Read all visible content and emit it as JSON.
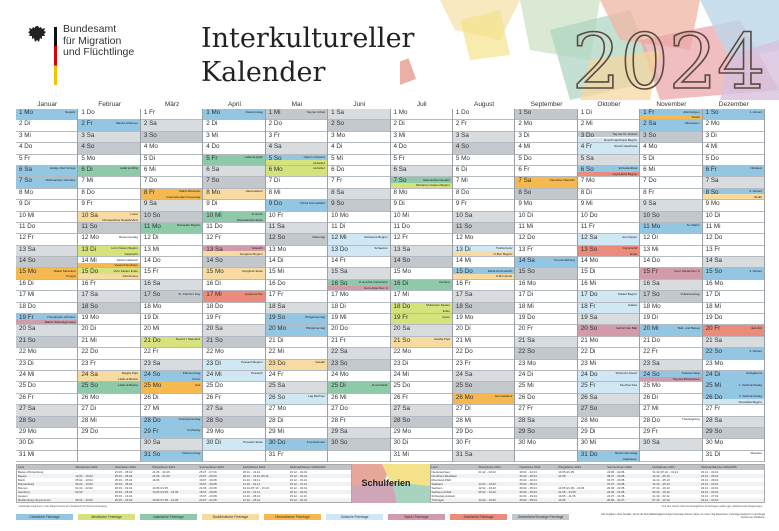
{
  "header": {
    "logo_lines": [
      "Bundesamt",
      "für Migration",
      "und Flüchtlinge"
    ],
    "title_line1": "Interkultureller",
    "title_line2": "Kalender",
    "year": "2024"
  },
  "weekdays": [
    "Mo",
    "Di",
    "Mi",
    "Do",
    "Fr",
    "Sa",
    "So"
  ],
  "colors": {
    "sat": "#d8dcdf",
    "sun": "#c3c8cc",
    "c": "#93c6e2",
    "j": "#cfe8f3",
    "i": "#8ec9a9",
    "a": "#d6e27c",
    "b": "#f8dba0",
    "h": "#f5b94f",
    "bh": "#d19ba9",
    "y": "#ea8b7c",
    "g": "#c3c8cc"
  },
  "months": [
    {
      "name": "Januar",
      "days": 31,
      "start": 0,
      "events": {
        "1": [
          [
            "c",
            "Neujahr"
          ]
        ],
        "6": [
          [
            "c",
            "Heilige Drei Könige"
          ]
        ],
        "7": [
          [
            "c",
            "Weihnachten orthodox"
          ]
        ],
        "15": [
          [
            "h",
            "Makar Sankranti"
          ],
          [
            "h",
            "Pongal"
          ]
        ],
        "19": [
          [
            "c",
            "Theophanie orthodox"
          ],
          [
            "bh",
            "Bahá'í Weltreligionstag"
          ]
        ]
      }
    },
    {
      "name": "Februar",
      "days": 29,
      "start": 3,
      "events": {
        "2": [
          [
            "c",
            "Mariä Lichtmess"
          ]
        ],
        "6": [
          [
            "i",
            "Lailat al-Miraj"
          ]
        ],
        "10": [
          [
            "b",
            "Losar"
          ],
          [
            "b",
            "Chinesisches Neujahrsfest"
          ]
        ],
        "12": [
          [
            "w",
            "Rosenmontag"
          ]
        ],
        "13": [
          [
            "a",
            "Hızır Fasten Beginn"
          ],
          [
            "w",
            "Fastnacht"
          ]
        ],
        "14": [
          [
            "w",
            "Aschermittwoch"
          ],
          [
            "h",
            "Vasant Panchami"
          ]
        ],
        "15": [
          [
            "a",
            "Hızır Fasten Ende"
          ],
          [
            "b",
            "Parinirvana"
          ]
        ],
        "24": [
          [
            "b",
            "Magha Puja"
          ],
          [
            "b",
            "Lailat al-Bara'a"
          ]
        ],
        "25": [
          [
            "i",
            "Lailat al-Bara'a"
          ]
        ]
      }
    },
    {
      "name": "März",
      "days": 31,
      "start": 4,
      "events": {
        "8": [
          [
            "h",
            "Maha Shivaratri"
          ],
          [
            "w",
            "Internationaler Frauentag"
          ]
        ],
        "11": [
          [
            "i",
            "Ramadan Beginn"
          ]
        ],
        "17": [
          [
            "g",
            "St. Patrick's Day"
          ]
        ],
        "21": [
          [
            "a",
            "Nevruz / Naw-Ruz"
          ]
        ],
        "24": [
          [
            "c",
            "Palmsonntag"
          ],
          [
            "c",
            "Purim"
          ]
        ],
        "25": [
          [
            "h",
            "Holi"
          ]
        ],
        "28": [
          [
            "c",
            "Gründonnerstag"
          ]
        ],
        "29": [
          [
            "c",
            "Karfreitag"
          ]
        ],
        "31": [
          [
            "c",
            "Ostersonntag"
          ]
        ]
      }
    },
    {
      "name": "April",
      "days": 30,
      "start": 0,
      "events": {
        "1": [
          [
            "c",
            "Ostermontag"
          ]
        ],
        "5": [
          [
            "i",
            "Lailat al-Qadr"
          ]
        ],
        "8": [
          [
            "b",
            "Hanamatsuri"
          ]
        ],
        "10": [
          [
            "i",
            "Id al-Fitr"
          ],
          [
            "i",
            "Ramadanfest Ende"
          ]
        ],
        "13": [
          [
            "bh",
            "Vaisakhi"
          ],
          [
            "b",
            "Songkran Beginn"
          ]
        ],
        "15": [
          [
            "b",
            "Songkran Ende"
          ]
        ],
        "17": [
          [
            "y",
            "Çarşema Sor"
          ]
        ],
        "23": [
          [
            "j",
            "Pessach Beginn"
          ]
        ],
        "24": [
          [
            "j",
            "Pessach"
          ]
        ],
        "30": [
          [
            "j",
            "Pessach Ende"
          ]
        ]
      }
    },
    {
      "name": "Mai",
      "days": 31,
      "start": 2,
      "events": {
        "1": [
          [
            "g",
            "Tag der Arbeit"
          ]
        ],
        "5": [
          [
            "c",
            "Ostern orthodox"
          ],
          [
            "a",
            "Hıdrellez"
          ]
        ],
        "6": [
          [
            "a",
            "Hıdrellez"
          ]
        ],
        "9": [
          [
            "c",
            "Christi Himmelfahrt"
          ]
        ],
        "12": [
          [
            "g",
            "Muttertag"
          ]
        ],
        "19": [
          [
            "c",
            "Pfingstsonntag"
          ]
        ],
        "20": [
          [
            "c",
            "Pfingstmontag"
          ]
        ],
        "23": [
          [
            "b",
            "Vesakh"
          ]
        ],
        "26": [
          [
            "j",
            "Lag BaOmer"
          ]
        ],
        "30": [
          [
            "c",
            "Fronleichnam"
          ]
        ]
      }
    },
    {
      "name": "Juni",
      "days": 30,
      "start": 5,
      "events": {
        "12": [
          [
            "j",
            "Schawuot Beginn"
          ]
        ],
        "13": [
          [
            "j",
            "Schawuot"
          ]
        ],
        "16": [
          [
            "i",
            "Id al-Adha (Opferfest)"
          ],
          [
            "bh",
            "Guru Arjan Dev Ji"
          ]
        ],
        "25": [
          [
            "i",
            "Id al-Ghadir"
          ]
        ]
      }
    },
    {
      "name": "Juli",
      "days": 31,
      "start": 0,
      "events": {
        "7": [
          [
            "i",
            "Islamisches Neujahr"
          ],
          [
            "a",
            "Muharrem Fasten Beginn"
          ]
        ],
        "16": [
          [
            "i",
            "Aschura"
          ]
        ],
        "18": [
          [
            "a",
            "Muharrem Fasten"
          ],
          [
            "a",
            "Ende"
          ]
        ],
        "19": [
          [
            "a",
            "Aşure"
          ]
        ],
        "21": [
          [
            "b",
            "Asalha Puja"
          ]
        ]
      }
    },
    {
      "name": "August",
      "days": 31,
      "start": 3,
      "events": {
        "13": [
          [
            "j",
            "Tischa beAv"
          ],
          [
            "b",
            "O-Bon Beginn"
          ]
        ],
        "15": [
          [
            "c",
            "Mariä Himmelfahrt"
          ],
          [
            "b",
            "O-Bon Ende"
          ]
        ],
        "26": [
          [
            "h",
            "Janmashtami"
          ]
        ]
      }
    },
    {
      "name": "September",
      "days": 30,
      "start": 6,
      "events": {
        "7": [
          [
            "h",
            "Ganesha Chaturthi"
          ]
        ],
        "14": [
          [
            "c",
            "Kreuzerhöhung"
          ]
        ]
      }
    },
    {
      "name": "Oktober",
      "days": 31,
      "start": 1,
      "events": {
        "3": [
          [
            "g",
            "Tag der Dt. Einheit"
          ],
          [
            "j",
            "Rosch Haschana Beginn"
          ]
        ],
        "4": [
          [
            "j",
            "Rosch Haschana"
          ]
        ],
        "6": [
          [
            "c",
            "Erntedankfest"
          ],
          [
            "y",
            "Cejna Ezid Beginn"
          ]
        ],
        "12": [
          [
            "j",
            "Jom Kippur"
          ]
        ],
        "13": [
          [
            "y",
            "Cejna Ezid"
          ],
          [
            "y",
            "Ende"
          ]
        ],
        "17": [
          [
            "j",
            "Sukkot Beginn"
          ]
        ],
        "18": [
          [
            "j",
            "Sukkot"
          ]
        ],
        "20": [
          [
            "bh",
            "Geburt des Báb"
          ]
        ],
        "24": [
          [
            "j",
            "Schemini Azeret"
          ]
        ],
        "25": [
          [
            "j",
            "Simchat Tora"
          ]
        ],
        "31": [
          [
            "c",
            "Reformationstag"
          ],
          [
            "w",
            "Halloween"
          ]
        ]
      }
    },
    {
      "name": "November",
      "days": 30,
      "start": 4,
      "events": {
        "1": [
          [
            "c",
            "Allerheiligen"
          ],
          [
            "h",
            "Diwali"
          ]
        ],
        "2": [
          [
            "c",
            "Allerseelen"
          ]
        ],
        "11": [
          [
            "c",
            "St. Martin"
          ]
        ],
        "15": [
          [
            "bh",
            "Guru Nanak Dev Ji"
          ]
        ],
        "17": [
          [
            "g",
            "Volkstrauertag"
          ]
        ],
        "20": [
          [
            "c",
            "Buß- und Bettag"
          ]
        ],
        "24": [
          [
            "c",
            "Totensonntag"
          ],
          [
            "bh",
            "Tag des Bündnisses"
          ]
        ],
        "28": [
          [
            "w",
            "Thanksgiving"
          ]
        ]
      }
    },
    {
      "name": "Dezember",
      "days": 31,
      "start": 6,
      "events": {
        "1": [
          [
            "c",
            "1. Advent"
          ]
        ],
        "6": [
          [
            "c",
            "Nikolaus"
          ]
        ],
        "8": [
          [
            "c",
            "2. Advent"
          ],
          [
            "b",
            "Bodhi"
          ]
        ],
        "15": [
          [
            "c",
            "3. Advent"
          ]
        ],
        "20": [
          [
            "y",
            "Êda Êzî"
          ]
        ],
        "22": [
          [
            "c",
            "4. Advent"
          ]
        ],
        "24": [
          [
            "c",
            "Heiligabend"
          ]
        ],
        "25": [
          [
            "c",
            "1. Weihnachtstag"
          ]
        ],
        "26": [
          [
            "c",
            "2. Weihnachtstag"
          ],
          [
            "j",
            "Chanukka Beginn"
          ]
        ],
        "31": [
          [
            "w",
            "Silvester"
          ]
        ]
      }
    }
  ],
  "school_holidays": {
    "label": "Schulferien",
    "columns": [
      "Land",
      "Winterferien 2024",
      "Osterferien 2024",
      "Pfingstferien 2024",
      "Sommerferien 2024",
      "Herbstferien 2024",
      "Weihnachtsferien 2024/2025"
    ],
    "left": [
      [
        "Baden-Württemberg",
        "-",
        "23.03. - 05.04.",
        "21.05. - 31.05.",
        "25.07. - 07.09.",
        "28.10. - 31.10.",
        "23.12. - 04.01."
      ],
      [
        "Bayern",
        "12.02. - 16.02.",
        "25.03. - 06.04.",
        "21.05. - 01.06.",
        "29.07. - 09.09.",
        "28.10. - 31.10./20.11.",
        "23.12. - 03.01."
      ],
      [
        "Berlin",
        "05.02. - 10.02.",
        "25.03. - 05.04.",
        "10.05.",
        "18.07. - 30.08.",
        "21.10. - 02.11.",
        "23.12. - 31.12."
      ],
      [
        "Brandenburg",
        "05.02. - 10.02.",
        "25.03. - 05.04.",
        "",
        "18.07. - 30.08.",
        "21.10. - 01.11.",
        "23.12. - 31.12."
      ],
      [
        "Bremen",
        "01.02. - 02.02.",
        "18.03. - 02.04.",
        "10.05./21.05.",
        "24.06. - 02.08.",
        "04.10./07.10. - 19.10.",
        "23.12. - 04.01."
      ],
      [
        "Hamburg",
        "02.02.",
        "18.03. - 28.03.",
        "10.05./21.05. - 24.05.",
        "18.07. - 28.08.",
        "21.10. - 01.11.",
        "20.12. - 03.01."
      ],
      [
        "Hessen",
        "",
        "25.03. - 13.04.",
        "",
        "15.07. - 23.08.",
        "14.10. - 26.10.",
        "23.12. - 11.01."
      ],
      [
        "Mecklenburg-Vorpommern",
        "05.02. - 16.02.",
        "25.03. - 03.04.",
        "10.05./17.05. - 21.05.",
        "22.07. - 31.08.",
        "21.10. - 26.10.",
        "23.12. - 04.01."
      ]
    ],
    "right": [
      [
        "Niedersachsen",
        "01.02. - 02.02.",
        "18.03. - 02.04.",
        "10.05./21.05.",
        "24.06. - 02.08.",
        "04.10./07.10. - 19.10.",
        "23.12. - 04.01."
      ],
      [
        "Nordrhein-Westfalen",
        "",
        "25.03. - 06.04.",
        "21.05.",
        "08.07. - 20.08.",
        "14.10. - 26.10.",
        "23.12. - 06.01."
      ],
      [
        "Rheinland-Pfalz",
        "",
        "25.03. - 02.04.",
        "",
        "15.07. - 23.08.",
        "14.10. - 25.10.",
        "23.12. - 08.01."
      ],
      [
        "Saarland",
        "12.02. - 16.02.",
        "25.03. - 05.04.",
        "",
        "15.07. - 23.08.",
        "14.10. - 25.10.",
        "23.12. - 03.01."
      ],
      [
        "Sachsen",
        "12.02. - 23.02.",
        "28.03. - 05.04.",
        "10.05./21.05. - 24.05.",
        "20.06. - 02.08.",
        "07.10. - 19.10.",
        "23.12. - 03.01."
      ],
      [
        "Sachsen-Anhalt",
        "05.02. - 10.02.",
        "25.03. - 30.03.",
        "21.05. - 24.05.",
        "24.06. - 02.08.",
        "04.10. - 19.10.",
        "23.12. - 04.01."
      ],
      [
        "Schleswig-Holstein",
        "",
        "02.04. - 19.04.",
        "10.05. - 11.05.",
        "22.07. - 31.08.",
        "21.10. - 02.11.",
        "19.12. - 07.01."
      ],
      [
        "Thüringen",
        "12.02. - 16.02.",
        "25.03. - 05.04.",
        "10.05.",
        "20.06. - 31.07.",
        "07.10. - 19.10.",
        "23.12. - 03.01."
      ]
    ]
  },
  "footnotes": [
    "¹ Feiertage beginnen in der Regel bereits am Vorabend mit Sonnenuntergang.",
    "² Auf den Inseln oder bei beweglichen Ferientagen gelten ggf. abweichende Regelungen."
  ],
  "legend": [
    {
      "label": "Christliche Feiertage",
      "key": "c"
    },
    {
      "label": "Alevitische Feiertage",
      "key": "a"
    },
    {
      "label": "Islamische Feiertage",
      "key": "i"
    },
    {
      "label": "Buddhistische Feiertage",
      "key": "b"
    },
    {
      "label": "Hinduistische Feiertage",
      "key": "h"
    },
    {
      "label": "Jüdische Feiertage",
      "key": "j"
    },
    {
      "label": "Bahá'í Feiertage",
      "key": "bh"
    },
    {
      "label": "Jesidische Feiertage",
      "key": "y"
    },
    {
      "label": "Gesetzliche/Sonstige Feiertage",
      "key": "g"
    }
  ],
  "note": "Alle Angaben ohne Gewähr. Durch die Mondabhängigkeit einiger Feiertage können diese um einen Tag abweichen. Feiertage beginnen in der Regel bereits am Vorabend."
}
